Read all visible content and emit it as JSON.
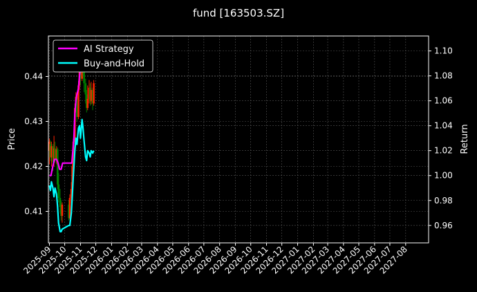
{
  "chart_data": {
    "type": "line",
    "title": "fund [163503.SZ]",
    "ylabel_left": "Price",
    "ylabel_right": "Return",
    "grid": true,
    "legend_position": "top-left",
    "x_ticks": [
      "2025-09",
      "2025-10",
      "2025-11",
      "2025-12",
      "2026-01",
      "2026-02",
      "2026-03",
      "2026-04",
      "2026-05",
      "2026-06",
      "2026-07",
      "2026-08",
      "2026-09",
      "2026-10",
      "2026-11",
      "2026-12",
      "2027-01",
      "2027-02",
      "2027-03",
      "2027-04",
      "2027-05",
      "2027-06",
      "2027-07",
      "2027-08"
    ],
    "xlim": [
      "2025-08-30",
      "2027-09-15"
    ],
    "y_left_ticks": [
      0.41,
      0.42,
      0.43,
      0.44
    ],
    "y_left_range": [
      0.403,
      0.449
    ],
    "y_right_ticks": [
      0.96,
      0.98,
      1.0,
      1.02,
      1.04,
      1.06,
      1.08,
      1.1
    ],
    "y_right_range": [
      0.946,
      1.112
    ],
    "price_candles": [
      {
        "date": "2025-09-01",
        "open": 0.4235,
        "close": 0.4255,
        "high": 0.4262,
        "low": 0.4205,
        "color": "#ff2200"
      },
      {
        "date": "2025-09-03",
        "open": 0.425,
        "close": 0.422,
        "high": 0.4258,
        "low": 0.4212,
        "color": "#008000"
      },
      {
        "date": "2025-09-05",
        "open": 0.422,
        "close": 0.4245,
        "high": 0.4255,
        "low": 0.42,
        "color": "#ff2200"
      },
      {
        "date": "2025-09-08",
        "open": 0.4245,
        "close": 0.421,
        "high": 0.425,
        "low": 0.419,
        "color": "#008000"
      },
      {
        "date": "2025-09-10",
        "open": 0.421,
        "close": 0.424,
        "high": 0.4268,
        "low": 0.42,
        "color": "#ff2200"
      },
      {
        "date": "2025-09-12",
        "open": 0.424,
        "close": 0.4215,
        "high": 0.4255,
        "low": 0.4208,
        "color": "#008000"
      },
      {
        "date": "2025-09-15",
        "open": 0.4215,
        "close": 0.4238,
        "high": 0.4245,
        "low": 0.4205,
        "color": "#ff2200"
      },
      {
        "date": "2025-09-17",
        "open": 0.4238,
        "close": 0.416,
        "high": 0.4242,
        "low": 0.415,
        "color": "#008000"
      },
      {
        "date": "2025-09-19",
        "open": 0.416,
        "close": 0.413,
        "high": 0.4185,
        "low": 0.412,
        "color": "#008000"
      },
      {
        "date": "2025-09-22",
        "open": 0.413,
        "close": 0.411,
        "high": 0.415,
        "low": 0.4095,
        "color": "#008000"
      },
      {
        "date": "2025-09-24",
        "open": 0.411,
        "close": 0.409,
        "high": 0.4125,
        "low": 0.408,
        "color": "#008000"
      },
      {
        "date": "2025-09-26",
        "open": 0.409,
        "close": 0.4115,
        "high": 0.412,
        "low": 0.4075,
        "color": "#ff2200"
      },
      {
        "date": "2025-10-09",
        "open": 0.4115,
        "close": 0.4085,
        "high": 0.4125,
        "low": 0.408,
        "color": "#008000"
      },
      {
        "date": "2025-10-11",
        "open": 0.4085,
        "close": 0.413,
        "high": 0.4138,
        "low": 0.4082,
        "color": "#ff2200"
      },
      {
        "date": "2025-10-14",
        "open": 0.413,
        "close": 0.415,
        "high": 0.4165,
        "low": 0.4118,
        "color": "#ff2200"
      },
      {
        "date": "2025-10-16",
        "open": 0.415,
        "close": 0.42,
        "high": 0.421,
        "low": 0.414,
        "color": "#ff2200"
      },
      {
        "date": "2025-10-18",
        "open": 0.42,
        "close": 0.4255,
        "high": 0.4262,
        "low": 0.4195,
        "color": "#ff2200"
      },
      {
        "date": "2025-10-21",
        "open": 0.4255,
        "close": 0.433,
        "high": 0.434,
        "low": 0.425,
        "color": "#ff2200"
      },
      {
        "date": "2025-10-23",
        "open": 0.433,
        "close": 0.4355,
        "high": 0.4365,
        "low": 0.432,
        "color": "#ff2200"
      },
      {
        "date": "2025-10-25",
        "open": 0.4355,
        "close": 0.431,
        "high": 0.436,
        "low": 0.43,
        "color": "#008000"
      },
      {
        "date": "2025-10-28",
        "open": 0.431,
        "close": 0.438,
        "high": 0.439,
        "low": 0.4305,
        "color": "#ff2200"
      },
      {
        "date": "2025-10-30",
        "open": 0.438,
        "close": 0.441,
        "high": 0.4425,
        "low": 0.437,
        "color": "#ff2200"
      },
      {
        "date": "2025-11-01",
        "open": 0.441,
        "close": 0.4395,
        "high": 0.443,
        "low": 0.438,
        "color": "#008000"
      },
      {
        "date": "2025-11-04",
        "open": 0.4395,
        "close": 0.4445,
        "high": 0.4455,
        "low": 0.439,
        "color": "#ff2200"
      },
      {
        "date": "2025-11-06",
        "open": 0.4445,
        "close": 0.442,
        "high": 0.4462,
        "low": 0.44,
        "color": "#008000"
      },
      {
        "date": "2025-11-08",
        "open": 0.442,
        "close": 0.4385,
        "high": 0.443,
        "low": 0.4365,
        "color": "#008000"
      },
      {
        "date": "2025-11-11",
        "open": 0.4385,
        "close": 0.436,
        "high": 0.4395,
        "low": 0.434,
        "color": "#008000"
      },
      {
        "date": "2025-11-13",
        "open": 0.436,
        "close": 0.433,
        "high": 0.437,
        "low": 0.432,
        "color": "#008000"
      },
      {
        "date": "2025-11-15",
        "open": 0.433,
        "close": 0.435,
        "high": 0.438,
        "low": 0.4325,
        "color": "#ff2200"
      },
      {
        "date": "2025-11-18",
        "open": 0.435,
        "close": 0.4375,
        "high": 0.4392,
        "low": 0.434,
        "color": "#ff2200"
      },
      {
        "date": "2025-11-20",
        "open": 0.4375,
        "close": 0.4345,
        "high": 0.4385,
        "low": 0.4335,
        "color": "#008000"
      },
      {
        "date": "2025-11-22",
        "open": 0.4345,
        "close": 0.437,
        "high": 0.4388,
        "low": 0.4338,
        "color": "#ff2200"
      },
      {
        "date": "2025-11-25",
        "open": 0.437,
        "close": 0.434,
        "high": 0.4375,
        "low": 0.4325,
        "color": "#008000"
      },
      {
        "date": "2025-11-27",
        "open": 0.434,
        "close": 0.4385,
        "high": 0.4392,
        "low": 0.4335,
        "color": "#ff2200"
      }
    ],
    "series": [
      {
        "name": "AI Strategy",
        "color": "#ff00ff",
        "axis": "right",
        "x": [
          "2025-09-01",
          "2025-09-04",
          "2025-09-08",
          "2025-09-11",
          "2025-09-15",
          "2025-09-18",
          "2025-09-21",
          "2025-09-24",
          "2025-09-27",
          "2025-10-09",
          "2025-10-12",
          "2025-10-15",
          "2025-10-17",
          "2025-10-19",
          "2025-10-21",
          "2025-10-23",
          "2025-10-25",
          "2025-10-28",
          "2025-10-30",
          "2025-11-02",
          "2025-11-05",
          "2025-11-08",
          "2025-11-11",
          "2025-11-14",
          "2025-11-17",
          "2025-11-20",
          "2025-11-24",
          "2025-11-27"
        ],
        "values": [
          1.0,
          1.0,
          1.008,
          1.013,
          1.013,
          1.01,
          1.005,
          1.005,
          1.01,
          1.01,
          1.01,
          1.01,
          1.02,
          1.03,
          1.05,
          1.06,
          1.065,
          1.07,
          1.08,
          1.09,
          1.09,
          1.085,
          1.09,
          1.098,
          1.094,
          1.09,
          1.084,
          1.088
        ]
      },
      {
        "name": "Buy-and-Hold",
        "color": "#00ffff",
        "axis": "right",
        "x": [
          "2025-09-01",
          "2025-09-03",
          "2025-09-05",
          "2025-09-08",
          "2025-09-10",
          "2025-09-12",
          "2025-09-15",
          "2025-09-17",
          "2025-09-19",
          "2025-09-22",
          "2025-09-24",
          "2025-09-26",
          "2025-10-09",
          "2025-10-11",
          "2025-10-14",
          "2025-10-16",
          "2025-10-18",
          "2025-10-21",
          "2025-10-23",
          "2025-10-25",
          "2025-10-28",
          "2025-10-30",
          "2025-11-01",
          "2025-11-04",
          "2025-11-06",
          "2025-11-08",
          "2025-11-11",
          "2025-11-13",
          "2025-11-15",
          "2025-11-18",
          "2025-11-20",
          "2025-11-22",
          "2025-11-25",
          "2025-11-27"
        ],
        "values": [
          0.992,
          0.988,
          0.995,
          0.99,
          0.983,
          0.99,
          0.985,
          0.975,
          0.962,
          0.955,
          0.955,
          0.957,
          0.96,
          0.96,
          0.97,
          0.985,
          1.0,
          1.02,
          1.03,
          1.025,
          1.038,
          1.04,
          1.03,
          1.045,
          1.038,
          1.028,
          1.015,
          1.012,
          1.02,
          1.018,
          1.015,
          1.02,
          1.018,
          1.02
        ]
      }
    ]
  }
}
